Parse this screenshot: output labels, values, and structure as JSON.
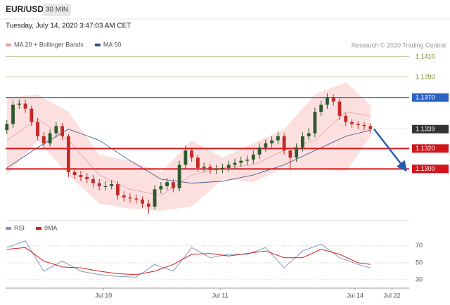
{
  "header": {
    "symbol": "EUR/USD",
    "timeframe": "30 MIN",
    "timestamp": "Tuesday, July 14, 2020 3:47:03 AM CET",
    "copyright": "Research © 2020 Trading Central"
  },
  "chart_data": [
    {
      "type": "candlestick",
      "up_color": "#2d5a2d",
      "down_color": "#c62828",
      "xlim": [
        -0.2,
        65.3
      ],
      "ylim": [
        1.1252,
        1.1416
      ],
      "open": [
        1.1338,
        1.1344,
        1.1363,
        1.1364,
        1.1359,
        1.1346,
        1.1332,
        1.1325,
        1.1335,
        1.1342,
        1.1332,
        1.1297,
        1.1294,
        1.1292,
        1.129,
        1.1286,
        1.1283,
        1.1283,
        1.1285,
        1.1274,
        1.1272,
        1.1271,
        1.127,
        1.1266,
        1.1263,
        1.128,
        1.1283,
        1.1287,
        1.1281,
        1.1304,
        1.1318,
        1.1311,
        1.1301,
        1.1302,
        1.1299,
        1.13,
        1.1301,
        1.1304,
        1.1306,
        1.1308,
        1.1309,
        1.1314,
        1.1321,
        1.1325,
        1.1328,
        1.1332,
        1.1318,
        1.1311,
        1.1321,
        1.1332,
        1.1335,
        1.1356,
        1.1363,
        1.137,
        1.1366,
        1.1352,
        1.1346,
        1.1344,
        1.1343,
        1.1342
      ],
      "high": [
        1.1348,
        1.1367,
        1.1368,
        1.1368,
        1.1362,
        1.135,
        1.1336,
        1.1339,
        1.1346,
        1.1345,
        1.1334,
        1.1301,
        1.1298,
        1.1296,
        1.1294,
        1.129,
        1.1288,
        1.1289,
        1.1288,
        1.1278,
        1.1276,
        1.1275,
        1.1273,
        1.127,
        1.1284,
        1.1287,
        1.1291,
        1.129,
        1.1308,
        1.1323,
        1.1321,
        1.1314,
        1.1306,
        1.1305,
        1.1304,
        1.1305,
        1.1308,
        1.131,
        1.1312,
        1.1313,
        1.1318,
        1.1325,
        1.1329,
        1.1332,
        1.1336,
        1.1335,
        1.1321,
        1.1325,
        1.1336,
        1.134,
        1.136,
        1.1367,
        1.1374,
        1.1373,
        1.1369,
        1.1355,
        1.1349,
        1.1347,
        1.1346,
        1.1345
      ],
      "low": [
        1.1334,
        1.134,
        1.1359,
        1.1355,
        1.1342,
        1.1328,
        1.1321,
        1.1322,
        1.1331,
        1.1328,
        1.1292,
        1.129,
        1.1288,
        1.1286,
        1.1282,
        1.1279,
        1.1279,
        1.128,
        1.127,
        1.1268,
        1.1267,
        1.1266,
        1.1262,
        1.1256,
        1.126,
        1.1276,
        1.1279,
        1.1277,
        1.1278,
        1.13,
        1.1307,
        1.1297,
        1.1297,
        1.1295,
        1.1295,
        1.1296,
        1.1297,
        1.13,
        1.1302,
        1.1304,
        1.1305,
        1.131,
        1.1317,
        1.1321,
        1.1324,
        1.1314,
        1.1299,
        1.1307,
        1.1317,
        1.1328,
        1.1331,
        1.1352,
        1.1359,
        1.1362,
        1.1348,
        1.1342,
        1.134,
        1.1339,
        1.1338,
        1.1335
      ],
      "close": [
        1.1344,
        1.1363,
        1.1364,
        1.1359,
        1.1346,
        1.1332,
        1.1325,
        1.1335,
        1.1342,
        1.1332,
        1.1297,
        1.1294,
        1.1292,
        1.129,
        1.1286,
        1.1283,
        1.1283,
        1.1285,
        1.1274,
        1.1272,
        1.1271,
        1.127,
        1.1266,
        1.1263,
        1.128,
        1.1283,
        1.1287,
        1.1281,
        1.1304,
        1.1318,
        1.1311,
        1.1301,
        1.1302,
        1.1299,
        1.13,
        1.1301,
        1.1304,
        1.1306,
        1.1308,
        1.1309,
        1.1314,
        1.1321,
        1.1325,
        1.1328,
        1.1332,
        1.1318,
        1.1311,
        1.1321,
        1.1332,
        1.1335,
        1.1356,
        1.1363,
        1.137,
        1.1366,
        1.1352,
        1.1346,
        1.1344,
        1.1343,
        1.1342,
        1.1339
      ],
      "series": [
        {
          "name": "MA 20 + Bollinger Bands",
          "color": "#e8a0a0",
          "band_color": "#fcdada",
          "x": [
            0,
            5,
            10,
            15,
            20,
            25,
            30,
            35,
            40,
            45,
            50,
            55,
            59
          ],
          "values": [
            1.1328,
            1.1349,
            1.1328,
            1.1294,
            1.128,
            1.1274,
            1.1294,
            1.1301,
            1.1304,
            1.1318,
            1.1328,
            1.1356,
            1.1352
          ],
          "upper": [
            1.137,
            1.1373,
            1.1356,
            1.1314,
            1.1308,
            1.1297,
            1.1328,
            1.1311,
            1.1325,
            1.1339,
            1.1373,
            1.1385,
            1.1363
          ],
          "lower": [
            1.1294,
            1.1328,
            1.1294,
            1.1266,
            1.1261,
            1.1259,
            1.1263,
            1.129,
            1.1287,
            1.1301,
            1.1301,
            1.1297,
            1.1332
          ]
        },
        {
          "name": "MA 50",
          "color": "#2f4f8f",
          "x": [
            0,
            5,
            10,
            15,
            20,
            25,
            30,
            35,
            40,
            45,
            50,
            55,
            59
          ],
          "values": [
            1.1301,
            1.1321,
            1.1339,
            1.1328,
            1.1308,
            1.129,
            1.1286,
            1.1288,
            1.1294,
            1.1304,
            1.1318,
            1.1332,
            1.1338
          ]
        }
      ],
      "levels": [
        {
          "value": 1.141,
          "label": "1.1410",
          "color": "#6b8e23",
          "boxed": false,
          "dashed": false
        },
        {
          "value": 1.139,
          "label": "1.1390",
          "color": "#6b8e23",
          "boxed": false,
          "dashed": false
        },
        {
          "value": 1.137,
          "label": "1.1370",
          "color": "#2a62c4",
          "boxed": true,
          "dashed": false
        },
        {
          "value": 1.1339,
          "color": "#333333",
          "boxed": true,
          "dashed": true
        },
        {
          "value": 1.132,
          "label": "1.1320",
          "color": "#d0161b",
          "boxed": true,
          "dashed": false
        },
        {
          "value": 1.13,
          "label": "1.1300",
          "color": "#d0161b",
          "boxed": true,
          "dashed": false
        }
      ],
      "forecast": {
        "color": "#2a5caa",
        "x": [
          59.6,
          64.6
        ],
        "values": [
          1.1339,
          1.13
        ]
      }
    },
    {
      "type": "line",
      "xlim": [
        -0.2,
        65.3
      ],
      "ylim": [
        20,
        84
      ],
      "yticks": [
        30,
        50,
        70
      ],
      "xticks": [
        {
          "value": 15.7,
          "label": "Jul 10"
        },
        {
          "value": 34.6,
          "label": "Jul 11"
        },
        {
          "value": 56.5,
          "label": "Jul 14"
        },
        {
          "value": 62.5,
          "label": "Jul 22"
        }
      ],
      "series": [
        {
          "name": "RSI",
          "color": "#8797bf",
          "x": [
            0,
            3,
            6,
            9,
            12,
            15,
            18,
            21,
            24,
            27,
            30,
            33,
            36,
            39,
            42,
            45,
            48,
            51,
            54,
            57,
            59
          ],
          "values": [
            68,
            76,
            40,
            52,
            40,
            36,
            34,
            33,
            48,
            40,
            68,
            56,
            60,
            60,
            68,
            44,
            64,
            72,
            56,
            48,
            44
          ]
        },
        {
          "name": "9MA",
          "color": "#cc2222",
          "x": [
            0,
            3,
            6,
            9,
            12,
            15,
            18,
            21,
            24,
            27,
            30,
            33,
            36,
            39,
            42,
            45,
            48,
            51,
            54,
            57,
            59
          ],
          "values": [
            66,
            68,
            52,
            45,
            44,
            40,
            37,
            36,
            40,
            48,
            60,
            61,
            58,
            61,
            64,
            56,
            56,
            66,
            60,
            50,
            48
          ]
        }
      ]
    }
  ]
}
